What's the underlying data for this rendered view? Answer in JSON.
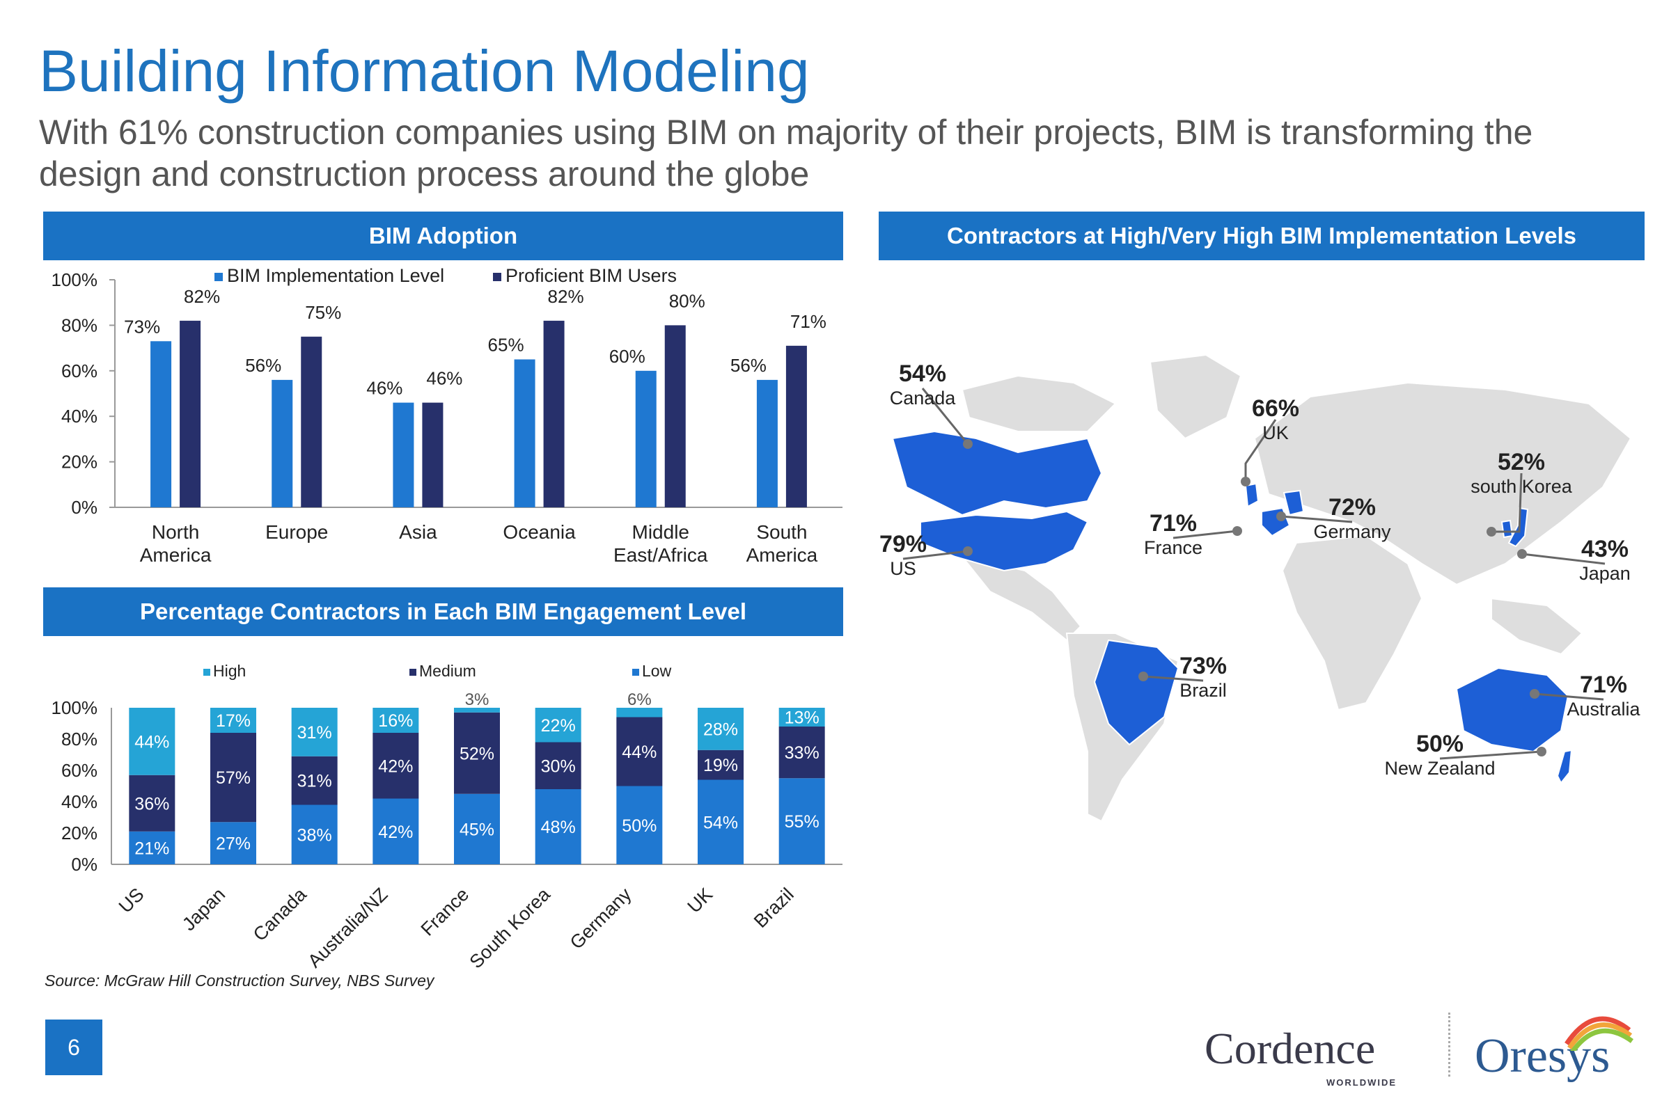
{
  "title": "Building Information Modeling",
  "subtitle": "With 61% construction companies using BIM on majority of their projects, BIM is transforming the design and construction process around the globe",
  "panels": {
    "adoption": "BIM Adoption",
    "map": "Contractors at High/Very High BIM Implementation Levels",
    "engagement": "Percentage Contractors in Each BIM Engagement Level"
  },
  "colors": {
    "brand_blue": "#1a72c4",
    "implementation": "#1f78d1",
    "proficient": "#27306b",
    "high": "#25a4d6",
    "medium": "#27306b",
    "low": "#1f78d1",
    "map_highlight": "#1d5fd6",
    "map_base": "#dedede"
  },
  "chart_data": [
    {
      "type": "bar",
      "title": "BIM Adoption",
      "categories": [
        "North\nAmerica",
        "Europe",
        "Asia",
        "Oceania",
        "Middle\nEast/Africa",
        "South\nAmerica"
      ],
      "series": [
        {
          "name": "BIM Implementation Level",
          "values": [
            73,
            56,
            46,
            65,
            60,
            56
          ]
        },
        {
          "name": "Proficient BIM Users",
          "values": [
            82,
            75,
            46,
            82,
            80,
            71
          ]
        }
      ],
      "ylim": [
        0,
        100
      ],
      "yticks": [
        "0%",
        "20%",
        "40%",
        "60%",
        "80%",
        "100%"
      ],
      "legend": "top",
      "grid": false
    },
    {
      "type": "bar",
      "stacked": true,
      "title": "Percentage Contractors in Each BIM Engagement Level",
      "categories": [
        "US",
        "Japan",
        "Canada",
        "Australia/NZ",
        "France",
        "South Korea",
        "Germany",
        "UK",
        "Brazil"
      ],
      "series": [
        {
          "name": "Low",
          "values": [
            21,
            27,
            38,
            42,
            45,
            48,
            50,
            54,
            55
          ]
        },
        {
          "name": "Medium",
          "values": [
            36,
            57,
            31,
            42,
            52,
            30,
            44,
            19,
            33
          ]
        },
        {
          "name": "High",
          "values": [
            44,
            17,
            31,
            16,
            3,
            22,
            6,
            28,
            13
          ]
        }
      ],
      "ylim": [
        0,
        100
      ],
      "yticks": [
        "0%",
        "20%",
        "40%",
        "60%",
        "80%",
        "100%"
      ],
      "legend": "top",
      "grid": false
    }
  ],
  "map_labels": [
    {
      "pct": "54%",
      "country": "Canada"
    },
    {
      "pct": "79%",
      "country": "US"
    },
    {
      "pct": "73%",
      "country": "Brazil"
    },
    {
      "pct": "66%",
      "country": "UK"
    },
    {
      "pct": "71%",
      "country": "France"
    },
    {
      "pct": "72%",
      "country": "Germany"
    },
    {
      "pct": "52%",
      "country": "south Korea"
    },
    {
      "pct": "43%",
      "country": "Japan"
    },
    {
      "pct": "71%",
      "country": "Australia"
    },
    {
      "pct": "50%",
      "country": "New Zealand"
    }
  ],
  "source": "Source: McGraw Hill Construction Survey, NBS Survey",
  "page_number": "6",
  "logos": {
    "cordence": "Cordence",
    "cordence_sub": "WORLDWIDE",
    "oresys": "Oresys"
  }
}
